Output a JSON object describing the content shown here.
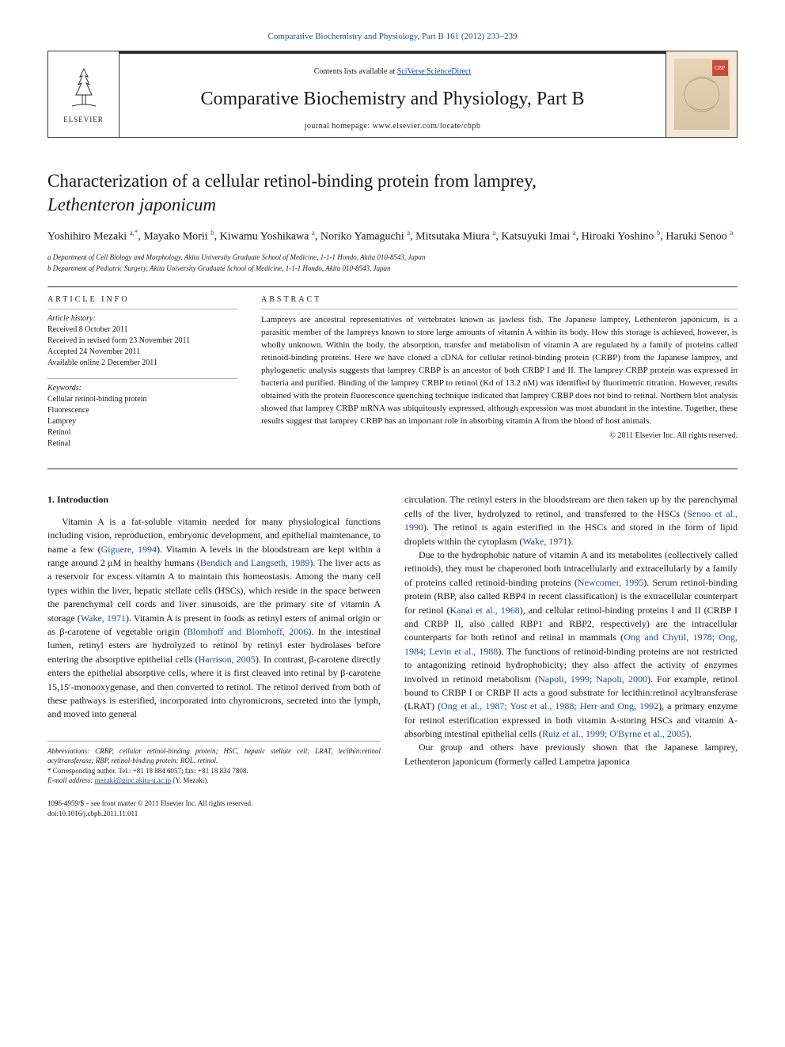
{
  "journal_link_text": "Comparative Biochemistry and Physiology, Part B 161 (2012) 233–239",
  "banner": {
    "publisher": "ELSEVIER",
    "contents_prefix": "Contents lists available at ",
    "contents_link": "SciVerse ScienceDirect",
    "journal_name": "Comparative Biochemistry and Physiology, Part B",
    "homepage_label": "journal homepage: www.elsevier.com/locate/cbpb",
    "cover_badge": "CBP"
  },
  "title_line1": "Characterization of a cellular retinol-binding protein from lamprey,",
  "title_line2_italic": "Lethenteron japonicum",
  "authors_html": "Yoshihiro Mezaki <sup>a,*</sup>, Mayako Morii <sup>b</sup>, Kiwamu Yoshikawa <sup>a</sup>, Noriko Yamaguchi <sup>a</sup>, Mitsutaka Miura <sup>a</sup>, Katsuyuki Imai <sup>a</sup>, Hiroaki Yoshino <sup>b</sup>, Haruki Senoo <sup>a</sup>",
  "affiliations": [
    "a Department of Cell Biology and Morphology, Akita University Graduate School of Medicine, 1-1-1 Hondo, Akita 010-8543, Japan",
    "b Department of Pediatric Surgery, Akita University Graduate School of Medicine, 1-1-1 Hondo, Akita 010-8543, Japan"
  ],
  "article_info": {
    "heading": "ARTICLE INFO",
    "history_label": "Article history:",
    "received": "Received 8 October 2011",
    "revised": "Received in revised form 23 November 2011",
    "accepted": "Accepted 24 November 2011",
    "online": "Available online 2 December 2011",
    "keywords_label": "Keywords:",
    "keywords": [
      "Cellular retinol-binding protein",
      "Fluorescence",
      "Lamprey",
      "Retinol",
      "Retinal"
    ]
  },
  "abstract": {
    "heading": "ABSTRACT",
    "text": "Lampreys are ancestral representatives of vertebrates known as jawless fish. The Japanese lamprey, Lethenteron japonicum, is a parasitic member of the lampreys known to store large amounts of vitamin A within its body. How this storage is achieved, however, is wholly unknown. Within the body, the absorption, transfer and metabolism of vitamin A are regulated by a family of proteins called retinoid-binding proteins. Here we have cloned a cDNA for cellular retinol-binding protein (CRBP) from the Japanese lamprey, and phylogenetic analysis suggests that lamprey CRBP is an ancestor of both CRBP I and II. The lamprey CRBP protein was expressed in bacteria and purified. Binding of the lamprey CRBP to retinol (Kd of 13.2 nM) was identified by fluorimetric titration. However, results obtained with the protein fluorescence quenching technique indicated that lamprey CRBP does not bind to retinal. Northern blot analysis showed that lamprey CRBP mRNA was ubiquitously expressed, although expression was most abundant in the intestine. Together, these results suggest that lamprey CRBP has an important role in absorbing vitamin A from the blood of host animals.",
    "copyright": "© 2011 Elsevier Inc. All rights reserved."
  },
  "section1": {
    "heading": "1. Introduction",
    "p1": "Vitamin A is a fat-soluble vitamin needed for many physiological functions including vision, reproduction, embryonic development, and epithelial maintenance, to name a few (Giguere, 1994). Vitamin A levels in the bloodstream are kept within a range around 2 μM in healthy humans (Bendich and Langseth, 1989). The liver acts as a reservoir for excess vitamin A to maintain this homeostasis. Among the many cell types within the liver, hepatic stellate cells (HSCs), which reside in the space between the parenchymal cell cords and liver sinusoids, are the primary site of vitamin A storage (Wake, 1971). Vitamin A is present in foods as retinyl esters of animal origin or as β-carotene of vegetable origin (Blomhoff and Blomhoff, 2006). In the intestinal lumen, retinyl esters are hydrolyzed to retinol by retinyl ester hydrolases before entering the absorptive epithelial cells (Harrison, 2005). In contrast, β-carotene directly enters the epithelial absorptive cells, where it is first cleaved into retinal by β-carotene 15,15′-monooxygenase, and then converted to retinol. The retinol derived from both of these pathways is esterified, incorporated into chyromicrons, secreted into the lymph, and moved into general",
    "p2_right": "circulation. The retinyl esters in the bloodstream are then taken up by the parenchymal cells of the liver, hydrolyzed to retinol, and transferred to the HSCs (Senoo et al., 1990). The retinol is again esterified in the HSCs and stored in the form of lipid droplets within the cytoplasm (Wake, 1971).",
    "p3_right": "Due to the hydrophobic nature of vitamin A and its metabolites (collectively called retinoids), they must be chaperoned both intracellularly and extracellularly by a family of proteins called retinoid-binding proteins (Newcomer, 1995). Serum retinol-binding protein (RBP, also called RBP4 in recent classification) is the extracellular counterpart for retinol (Kanai et al., 1968), and cellular retinol-binding proteins I and II (CRBP I and CRBP II, also called RBP1 and RBP2, respectively) are the intracellular counterparts for both retinol and retinal in mammals (Ong and Chytil, 1978; Ong, 1984; Levin et al., 1988). The functions of retinoid-binding proteins are not restricted to antagonizing retinoid hydrophobicity; they also affect the activity of enzymes involved in retinoid metabolism (Napoli, 1999; Napoli, 2000). For example, retinol bound to CRBP I or CRBP II acts a good substrate for lecithin:retinol acyltransferase (LRAT) (Ong et al., 1987; Yost et al., 1988; Herr and Ong, 1992), a primary enzyme for retinol esterification expressed in both vitamin A-storing HSCs and vitamin A-absorbing intestinal epithelial cells (Ruiz et al., 1999; O'Byrne et al., 2005).",
    "p4_right": "Our group and others have previously shown that the Japanese lamprey, Lethenteron japonicum (formerly called Lampetra japonica"
  },
  "footnotes": {
    "abbrev": "Abbreviations: CRBP, cellular retinol-binding protein; HSC, hepatic stellate cell; LRAT, lecithin:retinol acyltransferase; RBP, retinol-binding protein; ROL, retinol.",
    "corresponding": "* Corresponding author. Tel.: +81 18 884 6057; fax: +81 18 834 7808.",
    "email_label": "E-mail address: ",
    "email": "mezaki@gipc.akita-u.ac.jp",
    "email_suffix": " (Y. Mezaki)."
  },
  "footer": {
    "left1": "1096-4959/$ – see front matter © 2011 Elsevier Inc. All rights reserved.",
    "left2": "doi:10.1016/j.cbpb.2011.11.011"
  },
  "colors": {
    "link": "#1a4f8f",
    "text": "#1a1a1a",
    "border": "#333333",
    "cover_bg": "#f5e8d8",
    "cover_badge": "#c94a3f"
  }
}
